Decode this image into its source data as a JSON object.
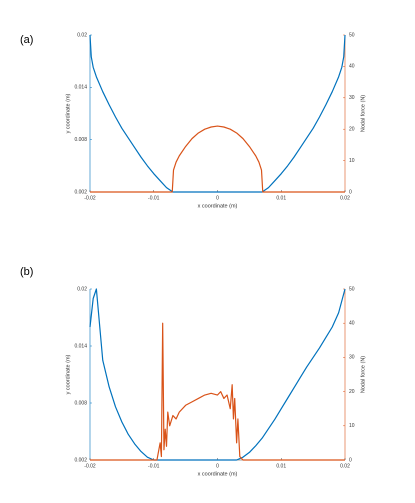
{
  "chart_data": [
    {
      "type": "line",
      "label": "(a)",
      "xlabel": "x coordinate (m)",
      "ylabel": "y coordinate (m)",
      "y2label": "Nodal force (N)",
      "xlim": [
        -0.02,
        0.02
      ],
      "xticks": [
        -0.02,
        -0.01,
        0,
        0.01,
        0.02
      ],
      "ylim": [
        0.002,
        0.02
      ],
      "yticks": [
        0.002,
        0.008,
        0.014,
        0.02
      ],
      "y2lim": [
        0,
        50
      ],
      "y2ticks": [
        0,
        10,
        20,
        30,
        40,
        50
      ],
      "series": [
        {
          "color": "#0072BD",
          "x": [
            -0.02,
            -0.0198,
            -0.0195,
            -0.019,
            -0.018,
            -0.017,
            -0.016,
            -0.015,
            -0.014,
            -0.013,
            -0.012,
            -0.011,
            -0.01,
            -0.009,
            -0.008,
            -0.007,
            0,
            0.007,
            0.008,
            0.009,
            0.01,
            0.011,
            0.012,
            0.013,
            0.014,
            0.015,
            0.016,
            0.017,
            0.018,
            0.019,
            0.0195,
            0.0198,
            0.02
          ],
          "values": [
            0.02,
            0.0175,
            0.0163,
            0.0152,
            0.0135,
            0.012,
            0.0106,
            0.0093,
            0.0082,
            0.0071,
            0.006,
            0.005,
            0.0041,
            0.0033,
            0.0025,
            0.002,
            0.002,
            0.002,
            0.0025,
            0.0033,
            0.0041,
            0.005,
            0.006,
            0.0071,
            0.0082,
            0.0093,
            0.0106,
            0.012,
            0.0135,
            0.0152,
            0.0163,
            0.0175,
            0.02
          ]
        },
        {
          "color": "#D95319",
          "axis": "y2",
          "x": [
            -0.02,
            -0.0071,
            -0.0069,
            -0.0065,
            -0.006,
            -0.005,
            -0.004,
            -0.003,
            -0.002,
            -0.001,
            0,
            0.001,
            0.002,
            0.003,
            0.004,
            0.005,
            0.006,
            0.0065,
            0.0069,
            0.0071,
            0.02
          ],
          "values": [
            0,
            0,
            7,
            9.5,
            11.5,
            14.5,
            17,
            18.8,
            20,
            20.7,
            21,
            20.7,
            20,
            18.8,
            17,
            14.5,
            11.5,
            9.5,
            7,
            0,
            0
          ]
        }
      ]
    },
    {
      "type": "line",
      "label": "(b)",
      "xlabel": "x coordinate (m)",
      "ylabel": "y coordinate (m)",
      "y2label": "Nodal force (N)",
      "xlim": [
        -0.02,
        0.02
      ],
      "xticks": [
        -0.02,
        -0.01,
        0,
        0.01,
        0.02
      ],
      "ylim": [
        0.002,
        0.02
      ],
      "yticks": [
        0.002,
        0.008,
        0.014,
        0.02
      ],
      "y2lim": [
        0,
        50
      ],
      "y2ticks": [
        0,
        10,
        20,
        30,
        40,
        50
      ],
      "series": [
        {
          "color": "#0072BD",
          "x": [
            -0.02,
            -0.0195,
            -0.019,
            -0.018,
            -0.017,
            -0.016,
            -0.015,
            -0.014,
            -0.013,
            -0.012,
            -0.011,
            -0.01,
            0.003,
            0.004,
            0.005,
            0.006,
            0.007,
            0.008,
            0.009,
            0.01,
            0.011,
            0.012,
            0.013,
            0.014,
            0.015,
            0.016,
            0.017,
            0.018,
            0.019,
            0.02
          ],
          "values": [
            0.016,
            0.019,
            0.02,
            0.0125,
            0.0097,
            0.0076,
            0.006,
            0.0047,
            0.0037,
            0.0029,
            0.0023,
            0.002,
            0.002,
            0.0023,
            0.0028,
            0.0035,
            0.0043,
            0.0053,
            0.0063,
            0.0074,
            0.0085,
            0.0096,
            0.0107,
            0.0118,
            0.0128,
            0.0138,
            0.0149,
            0.016,
            0.0175,
            0.02
          ]
        },
        {
          "color": "#D95319",
          "axis": "y2",
          "x": [
            -0.02,
            -0.0095,
            -0.009,
            -0.0088,
            -0.0086,
            -0.0084,
            -0.0082,
            -0.008,
            -0.0078,
            -0.0075,
            -0.007,
            -0.0065,
            -0.006,
            -0.005,
            -0.004,
            -0.003,
            -0.002,
            -0.001,
            0,
            0.0005,
            0.001,
            0.0015,
            0.002,
            0.0023,
            0.0025,
            0.0027,
            0.003,
            0.0032,
            0.0035,
            0.004,
            0.02
          ],
          "values": [
            0,
            0,
            5,
            1,
            40,
            3,
            9,
            4,
            14,
            10,
            13,
            12,
            14,
            16,
            17,
            18,
            19,
            19.5,
            19,
            20,
            18,
            19,
            15,
            22,
            12,
            18,
            5,
            12,
            1,
            0,
            0
          ]
        }
      ]
    }
  ]
}
